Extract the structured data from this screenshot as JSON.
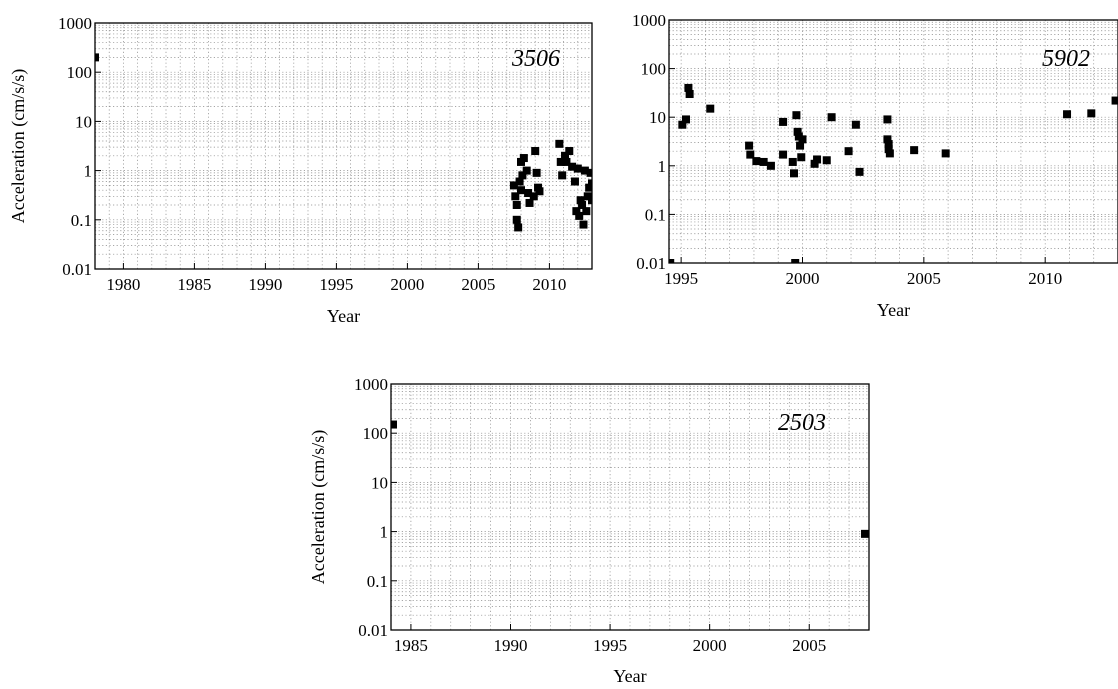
{
  "chart_data": [
    {
      "type": "scatter",
      "label": "3506",
      "xlabel": "Year",
      "ylabel": "Acceleration (cm/s/s)",
      "y_scale": "log",
      "ylim": [
        0.01,
        1000
      ],
      "xlim": [
        1978,
        2013
      ],
      "grid": true,
      "x_ticks": [
        "1980",
        "1985",
        "1990",
        "1995",
        "2000",
        "2005",
        "2010"
      ],
      "y_ticks": [
        "0.01",
        "0.1",
        "1",
        "10",
        "100",
        "1000"
      ],
      "points": [
        [
          1978.0,
          200
        ],
        [
          2007.5,
          0.5
        ],
        [
          2007.6,
          0.3
        ],
        [
          2007.7,
          0.2
        ],
        [
          2007.7,
          0.1
        ],
        [
          2007.8,
          0.07
        ],
        [
          2007.9,
          0.6
        ],
        [
          2008.0,
          1.5
        ],
        [
          2008.1,
          0.8
        ],
        [
          2008.0,
          0.4
        ],
        [
          2008.2,
          1.8
        ],
        [
          2008.4,
          1.0
        ],
        [
          2008.5,
          0.35
        ],
        [
          2008.6,
          0.22
        ],
        [
          2008.9,
          0.3
        ],
        [
          2009.0,
          2.5
        ],
        [
          2009.1,
          0.9
        ],
        [
          2009.2,
          0.45
        ],
        [
          2009.3,
          0.38
        ],
        [
          2010.7,
          3.5
        ],
        [
          2010.8,
          1.5
        ],
        [
          2010.9,
          0.8
        ],
        [
          2011.1,
          2.0
        ],
        [
          2011.2,
          1.5
        ],
        [
          2011.4,
          2.5
        ],
        [
          2011.6,
          1.2
        ],
        [
          2011.8,
          0.6
        ],
        [
          2011.9,
          0.15
        ],
        [
          2012.0,
          1.1
        ],
        [
          2012.1,
          0.12
        ],
        [
          2012.2,
          0.25
        ],
        [
          2012.3,
          0.2
        ],
        [
          2012.4,
          0.08
        ],
        [
          2012.5,
          1.0
        ],
        [
          2012.6,
          0.15
        ],
        [
          2012.7,
          0.3
        ],
        [
          2012.8,
          0.45
        ],
        [
          2012.9,
          0.9
        ],
        [
          2013.0,
          0.55
        ],
        [
          2013.0,
          0.25
        ]
      ]
    },
    {
      "type": "scatter",
      "label": "5902",
      "xlabel": "Year",
      "ylabel": "",
      "y_scale": "log",
      "ylim": [
        0.01,
        1000
      ],
      "xlim": [
        1994.5,
        2013
      ],
      "grid": true,
      "x_ticks": [
        "1995",
        "2000",
        "2005",
        "2010"
      ],
      "y_ticks": [
        "0.01",
        "0.1",
        "1",
        "10",
        "100",
        "1000"
      ],
      "points": [
        [
          1994.55,
          0.01
        ],
        [
          1995.05,
          7
        ],
        [
          1995.2,
          9
        ],
        [
          1995.3,
          40
        ],
        [
          1995.35,
          30
        ],
        [
          1996.2,
          15
        ],
        [
          1997.8,
          2.6
        ],
        [
          1997.85,
          1.7
        ],
        [
          1998.1,
          1.25
        ],
        [
          1998.4,
          1.2
        ],
        [
          1998.7,
          1.0
        ],
        [
          1999.2,
          8
        ],
        [
          1999.2,
          1.7
        ],
        [
          1999.6,
          1.2
        ],
        [
          1999.65,
          0.7
        ],
        [
          1999.7,
          0.01
        ],
        [
          1999.75,
          11
        ],
        [
          1999.8,
          5
        ],
        [
          1999.85,
          4
        ],
        [
          1999.9,
          2.6
        ],
        [
          1999.95,
          1.5
        ],
        [
          2000.0,
          3.5
        ],
        [
          2000.5,
          1.1
        ],
        [
          2000.6,
          1.35
        ],
        [
          2001.0,
          1.3
        ],
        [
          2001.2,
          10
        ],
        [
          2001.9,
          2.0
        ],
        [
          2002.2,
          7
        ],
        [
          2002.35,
          0.75
        ],
        [
          2003.5,
          9
        ],
        [
          2003.5,
          3.5
        ],
        [
          2003.55,
          2.8
        ],
        [
          2003.55,
          2.2
        ],
        [
          2003.6,
          1.8
        ],
        [
          2004.6,
          2.1
        ],
        [
          2005.9,
          1.8
        ],
        [
          2010.9,
          11.5
        ],
        [
          2011.9,
          12
        ],
        [
          2012.9,
          22
        ]
      ]
    },
    {
      "type": "scatter",
      "label": "2503",
      "xlabel": "Year",
      "ylabel": "Acceleration (cm/s/s)",
      "y_scale": "log",
      "ylim": [
        0.01,
        1000
      ],
      "xlim": [
        1984,
        2008
      ],
      "grid": true,
      "x_ticks": [
        "1985",
        "1990",
        "1995",
        "2000",
        "2005"
      ],
      "y_ticks": [
        "0.01",
        "0.1",
        "1",
        "10",
        "100",
        "1000"
      ],
      "points": [
        [
          1984.1,
          150
        ],
        [
          2007.8,
          0.9
        ]
      ]
    }
  ]
}
